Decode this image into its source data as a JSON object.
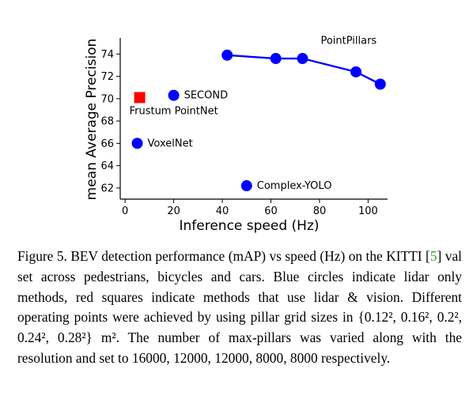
{
  "chart_data": {
    "type": "scatter",
    "xlabel": "Inference speed (Hz)",
    "ylabel": "mean Average Precision",
    "xlim": [
      -2,
      108
    ],
    "ylim": [
      61,
      75.3
    ],
    "xticks": [
      0,
      20,
      40,
      60,
      80,
      100
    ],
    "yticks": [
      62,
      64,
      66,
      68,
      70,
      72,
      74
    ],
    "grid": false,
    "lines": [
      {
        "label": "PointPillars",
        "color": "#0000ff",
        "marker": "circle",
        "points": [
          {
            "x": 42,
            "y": 73.9
          },
          {
            "x": 62,
            "y": 73.6
          },
          {
            "x": 73,
            "y": 73.6
          },
          {
            "x": 95,
            "y": 72.4
          },
          {
            "x": 105,
            "y": 71.3
          }
        ]
      }
    ],
    "points": [
      {
        "label": "SECOND",
        "x": 20,
        "y": 70.3,
        "color": "#0000ff",
        "marker": "circle"
      },
      {
        "label": "Frustum PointNet",
        "x": 6,
        "y": 70.1,
        "color": "#ff0000",
        "marker": "square"
      },
      {
        "label": "VoxelNet",
        "x": 5,
        "y": 66.0,
        "color": "#0000ff",
        "marker": "circle"
      },
      {
        "label": "Complex-YOLO",
        "x": 50,
        "y": 62.2,
        "color": "#0000ff",
        "marker": "circle"
      }
    ]
  },
  "caption": {
    "prefix": "Figure 5. BEV detection performance (mAP) vs speed (Hz) on the KITTI [",
    "cite": "5",
    "suffix": "] val set across pedestrians, bicycles and cars.  Blue circles indicate lidar only methods, red squares indicate methods that use lidar & vision. Different operating points were achieved by using pillar grid sizes in {0.12², 0.16², 0.2², 0.24², 0.28²} m². The number of max-pillars was varied along with the resolution and set to 16000, 12000, 12000, 8000, 8000 respectively."
  }
}
